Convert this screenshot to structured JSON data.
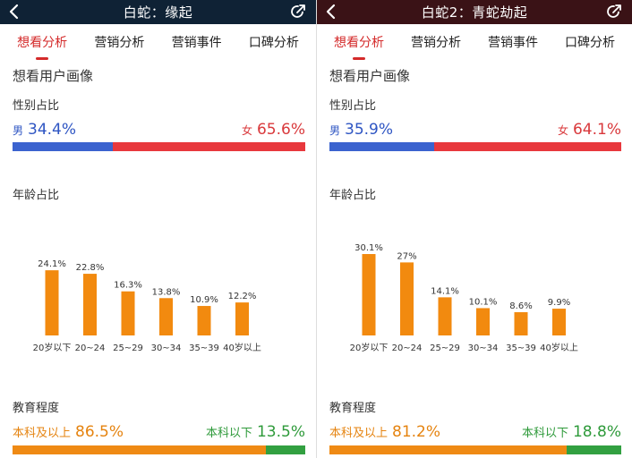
{
  "panels": [
    {
      "title": "白蛇：缘起",
      "tabs": [
        "想看分析",
        "营销分析",
        "营销事件",
        "口碑分析"
      ],
      "active_tab": 0,
      "section_title": "想看用户画像",
      "gender": {
        "label": "性别占比",
        "male_label": "男",
        "male_value": "34.4%",
        "male_pct": 34.4,
        "female_label": "女",
        "female_value": "65.6%",
        "female_pct": 65.6
      },
      "age": {
        "label": "年龄占比",
        "bar_color": "#f28a0f"
      },
      "education": {
        "label": "教育程度",
        "above_label": "本科及以上",
        "above_value": "86.5%",
        "above_pct": 86.5,
        "below_label": "本科以下",
        "below_value": "13.5%",
        "below_pct": 13.5
      }
    },
    {
      "title": "白蛇2：青蛇劫起",
      "tabs": [
        "想看分析",
        "营销分析",
        "营销事件",
        "口碑分析"
      ],
      "active_tab": 0,
      "section_title": "想看用户画像",
      "gender": {
        "label": "性别占比",
        "male_label": "男",
        "male_value": "35.9%",
        "male_pct": 35.9,
        "female_label": "女",
        "female_value": "64.1%",
        "female_pct": 64.1
      },
      "age": {
        "label": "年龄占比",
        "bar_color": "#f28a0f"
      },
      "education": {
        "label": "教育程度",
        "above_label": "本科及以上",
        "above_value": "81.2%",
        "above_pct": 81.2,
        "below_label": "本科以下",
        "below_value": "18.8%",
        "below_pct": 18.8
      }
    }
  ],
  "colors": {
    "male": "#3b63cf",
    "female": "#e8383d",
    "edu_above": "#ef8a14",
    "edu_below": "#32a041",
    "active_tab": "#d42a2a"
  },
  "icons": {
    "back": "chevron-left-icon",
    "share": "share-icon"
  },
  "chart_data": [
    {
      "type": "bar",
      "title": "年龄占比",
      "categories": [
        "20岁以下",
        "20~24",
        "25~29",
        "30~34",
        "35~39",
        "40岁以上"
      ],
      "values": [
        24.1,
        22.8,
        16.3,
        13.8,
        10.9,
        12.2
      ],
      "value_labels": [
        "24.1%",
        "22.8%",
        "16.3%",
        "13.8%",
        "10.9%",
        "12.2%"
      ],
      "ylim": [
        0,
        30.1
      ],
      "grid": false
    },
    {
      "type": "bar",
      "title": "年龄占比",
      "categories": [
        "20岁以下",
        "20~24",
        "25~29",
        "30~34",
        "35~39",
        "40岁以上"
      ],
      "values": [
        30.1,
        27,
        14.1,
        10.1,
        8.6,
        9.9
      ],
      "value_labels": [
        "30.1%",
        "27%",
        "14.1%",
        "10.1%",
        "8.6%",
        "9.9%"
      ],
      "ylim": [
        0,
        30.1
      ],
      "grid": false
    }
  ]
}
